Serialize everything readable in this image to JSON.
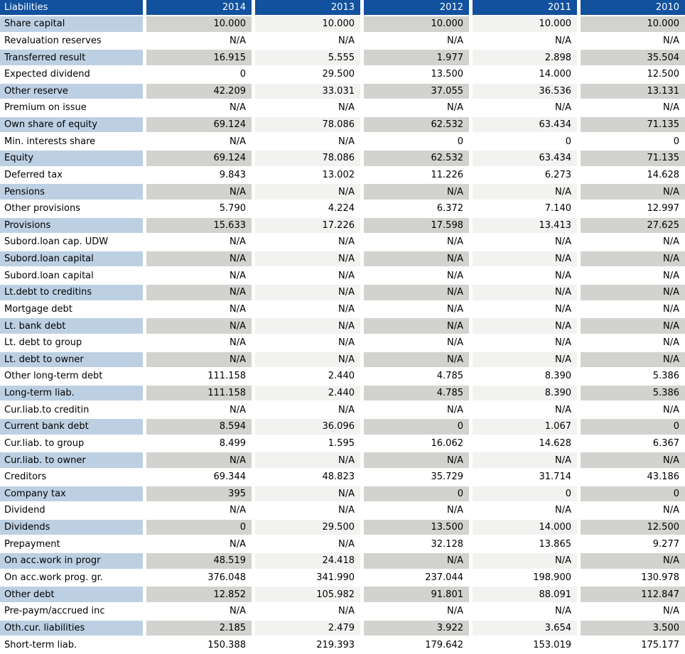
{
  "table": {
    "header": {
      "label": "Liabilities",
      "years": [
        "2014",
        "2013",
        "2012",
        "2011",
        "2010"
      ]
    },
    "rows": [
      {
        "label": "Share capital",
        "values": [
          "10.000",
          "10.000",
          "10.000",
          "10.000",
          "10.000"
        ]
      },
      {
        "label": "Revaluation reserves",
        "values": [
          "N/A",
          "N/A",
          "N/A",
          "N/A",
          "N/A"
        ]
      },
      {
        "label": "Transferred result",
        "values": [
          "16.915",
          "5.555",
          "1.977",
          "2.898",
          "35.504"
        ]
      },
      {
        "label": "Expected dividend",
        "values": [
          "0",
          "29.500",
          "13.500",
          "14.000",
          "12.500"
        ]
      },
      {
        "label": "Other reserve",
        "values": [
          "42.209",
          "33.031",
          "37.055",
          "36.536",
          "13.131"
        ]
      },
      {
        "label": "Premium on issue",
        "values": [
          "N/A",
          "N/A",
          "N/A",
          "N/A",
          "N/A"
        ]
      },
      {
        "label": "Own share of equity",
        "values": [
          "69.124",
          "78.086",
          "62.532",
          "63.434",
          "71.135"
        ]
      },
      {
        "label": "Min. interests share",
        "values": [
          "N/A",
          "N/A",
          "0",
          "0",
          "0"
        ]
      },
      {
        "label": "Equity",
        "values": [
          "69.124",
          "78.086",
          "62.532",
          "63.434",
          "71.135"
        ]
      },
      {
        "label": "Deferred tax",
        "values": [
          "9.843",
          "13.002",
          "11.226",
          "6.273",
          "14.628"
        ]
      },
      {
        "label": "Pensions",
        "values": [
          "N/A",
          "N/A",
          "N/A",
          "N/A",
          "N/A"
        ]
      },
      {
        "label": "Other provisions",
        "values": [
          "5.790",
          "4.224",
          "6.372",
          "7.140",
          "12.997"
        ]
      },
      {
        "label": "Provisions",
        "values": [
          "15.633",
          "17.226",
          "17.598",
          "13.413",
          "27.625"
        ]
      },
      {
        "label": "Subord.loan cap. UDW",
        "values": [
          "N/A",
          "N/A",
          "N/A",
          "N/A",
          "N/A"
        ]
      },
      {
        "label": "Subord.loan capital",
        "values": [
          "N/A",
          "N/A",
          "N/A",
          "N/A",
          "N/A"
        ]
      },
      {
        "label": "Subord.loan capital",
        "values": [
          "N/A",
          "N/A",
          "N/A",
          "N/A",
          "N/A"
        ]
      },
      {
        "label": "Lt.debt to creditins",
        "values": [
          "N/A",
          "N/A",
          "N/A",
          "N/A",
          "N/A"
        ]
      },
      {
        "label": "Mortgage debt",
        "values": [
          "N/A",
          "N/A",
          "N/A",
          "N/A",
          "N/A"
        ]
      },
      {
        "label": "Lt. bank debt",
        "values": [
          "N/A",
          "N/A",
          "N/A",
          "N/A",
          "N/A"
        ]
      },
      {
        "label": "Lt. debt to group",
        "values": [
          "N/A",
          "N/A",
          "N/A",
          "N/A",
          "N/A"
        ]
      },
      {
        "label": "Lt. debt to owner",
        "values": [
          "N/A",
          "N/A",
          "N/A",
          "N/A",
          "N/A"
        ]
      },
      {
        "label": "Other long-term debt",
        "values": [
          "111.158",
          "2.440",
          "4.785",
          "8.390",
          "5.386"
        ]
      },
      {
        "label": "Long-term liab.",
        "values": [
          "111.158",
          "2.440",
          "4.785",
          "8.390",
          "5.386"
        ]
      },
      {
        "label": "Cur.liab.to creditin",
        "values": [
          "N/A",
          "N/A",
          "N/A",
          "N/A",
          "N/A"
        ]
      },
      {
        "label": "Current bank debt",
        "values": [
          "8.594",
          "36.096",
          "0",
          "1.067",
          "0"
        ]
      },
      {
        "label": "Cur.liab. to group",
        "values": [
          "8.499",
          "1.595",
          "16.062",
          "14.628",
          "6.367"
        ]
      },
      {
        "label": "Cur.liab. to owner",
        "values": [
          "N/A",
          "N/A",
          "N/A",
          "N/A",
          "N/A"
        ]
      },
      {
        "label": "Creditors",
        "values": [
          "69.344",
          "48.823",
          "35.729",
          "31.714",
          "43.186"
        ]
      },
      {
        "label": "Company tax",
        "values": [
          "395",
          "N/A",
          "0",
          "0",
          "0"
        ]
      },
      {
        "label": "Dividend",
        "values": [
          "N/A",
          "N/A",
          "N/A",
          "N/A",
          "N/A"
        ]
      },
      {
        "label": "Dividends",
        "values": [
          "0",
          "29.500",
          "13.500",
          "14.000",
          "12.500"
        ]
      },
      {
        "label": "Prepayment",
        "values": [
          "N/A",
          "N/A",
          "32.128",
          "13.865",
          "9.277"
        ]
      },
      {
        "label": "On acc.work in progr",
        "values": [
          "48.519",
          "24.418",
          "N/A",
          "N/A",
          "N/A"
        ]
      },
      {
        "label": "On acc.work prog. gr.",
        "values": [
          "376.048",
          "341.990",
          "237.044",
          "198.900",
          "130.978"
        ]
      },
      {
        "label": "Other debt",
        "values": [
          "12.852",
          "105.982",
          "91.801",
          "88.091",
          "112.847"
        ]
      },
      {
        "label": "Pre-paym/accrued inc",
        "values": [
          "N/A",
          "N/A",
          "N/A",
          "N/A",
          "N/A"
        ]
      },
      {
        "label": "Oth.cur. liabilities",
        "values": [
          "2.185",
          "2.479",
          "3.922",
          "3.654",
          "3.500"
        ]
      },
      {
        "label": "Short-term liab.",
        "values": [
          "150.388",
          "219.393",
          "179.642",
          "153.019",
          "175.177"
        ]
      }
    ]
  },
  "colors": {
    "header_bg": "#11519E",
    "header_text": "#FFFFFF",
    "label_shaded_bg": "#BDD0E3",
    "value_shaded_odd_bg": "#D2D2CF",
    "value_shaded_even_bg": "#F2F2F1",
    "plain_row_bg": "#FFFFFF",
    "text": "#000000"
  }
}
